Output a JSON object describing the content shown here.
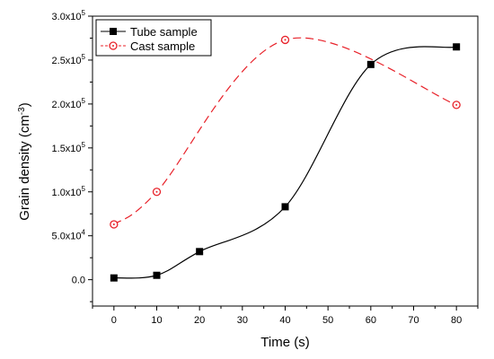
{
  "chart_data": {
    "type": "scatter",
    "title": "",
    "xlabel": "Time (s)",
    "ylabel": {
      "main": "Grain density (cm",
      "exponent": "-3",
      "close": ")"
    },
    "xlim": [
      -5,
      85
    ],
    "ylim": [
      -30000,
      300000
    ],
    "x_ticks": [
      0,
      10,
      20,
      30,
      40,
      50,
      60,
      70,
      80
    ],
    "x_tick_labels": [
      "0",
      "10",
      "20",
      "30",
      "40",
      "50",
      "60",
      "70",
      "80"
    ],
    "y_ticks": [
      0,
      50000,
      100000,
      150000,
      200000,
      250000,
      300000
    ],
    "y_tick_labels": [
      {
        "mantissa": "0.0",
        "exponent": ""
      },
      {
        "mantissa": "5.0x10",
        "exponent": "4"
      },
      {
        "mantissa": "1.0x10",
        "exponent": "5"
      },
      {
        "mantissa": "1.5x10",
        "exponent": "5"
      },
      {
        "mantissa": "2.0x10",
        "exponent": "5"
      },
      {
        "mantissa": "2.5x10",
        "exponent": "5"
      },
      {
        "mantissa": "3.0x10",
        "exponent": "5"
      }
    ],
    "legend_position": "top-left",
    "grid": false,
    "series": [
      {
        "name": "Tube sample",
        "color": "#000000",
        "marker": "filled-square",
        "line_style": "solid",
        "points": [
          {
            "x": 0,
            "y": 2000
          },
          {
            "x": 10,
            "y": 5000
          },
          {
            "x": 20,
            "y": 32000
          },
          {
            "x": 40,
            "y": 83000
          },
          {
            "x": 60,
            "y": 245000
          },
          {
            "x": 80,
            "y": 265000
          }
        ]
      },
      {
        "name": "Cast sample",
        "color": "#e8222a",
        "marker": "open-circle-dot",
        "line_style": "dashed",
        "points": [
          {
            "x": 0,
            "y": 63000
          },
          {
            "x": 10,
            "y": 100000
          },
          {
            "x": 40,
            "y": 273000
          },
          {
            "x": 80,
            "y": 199000
          }
        ]
      }
    ]
  }
}
